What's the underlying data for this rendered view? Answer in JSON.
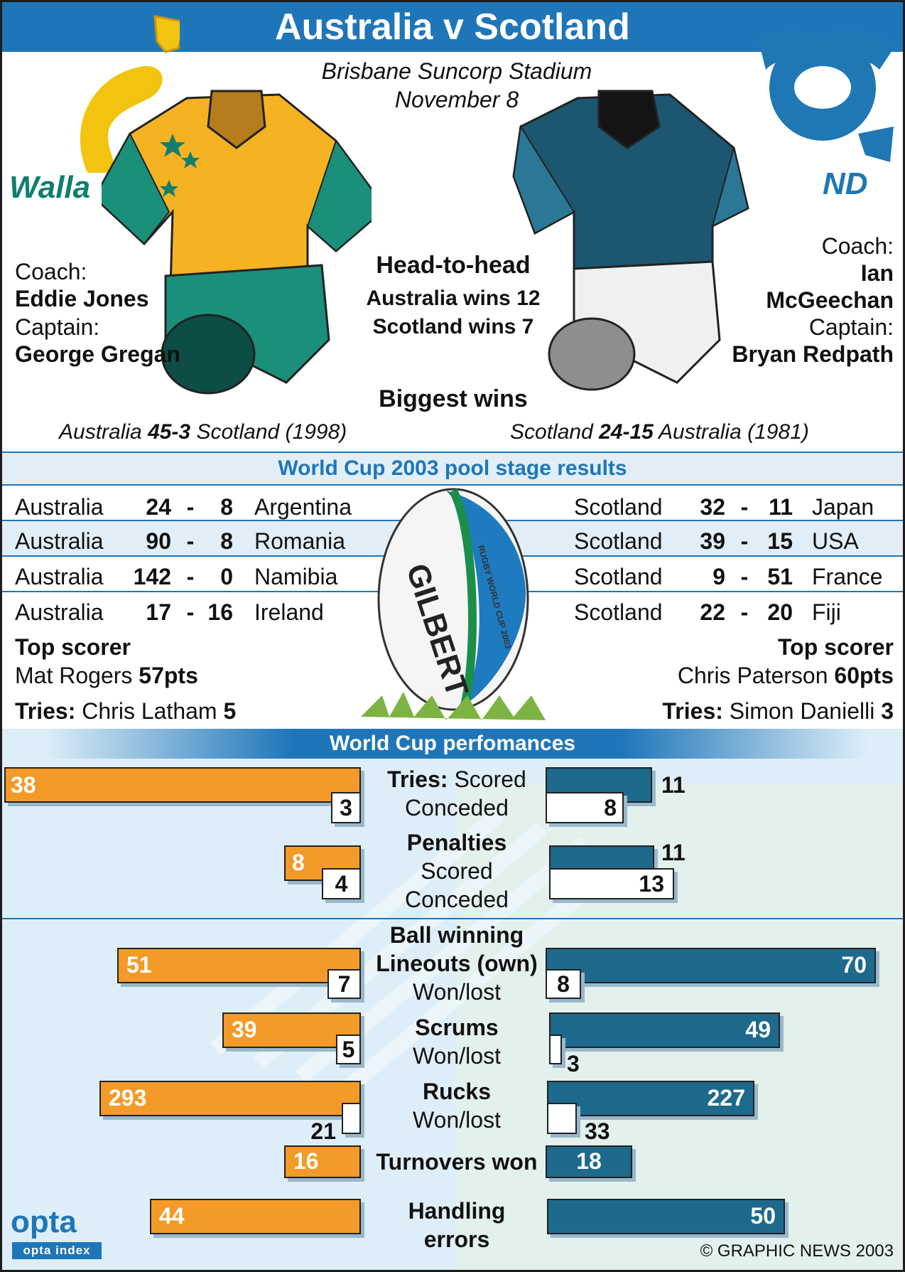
{
  "header": {
    "title": "Australia v Scotland",
    "venue": "Brisbane Suncorp Stadium",
    "date": "November 8",
    "logo_left_text": "Walla",
    "logo_right_text": "ND"
  },
  "colors": {
    "accent": "#1e76b9",
    "australia": "#f39a28",
    "scotland": "#1d6a8d",
    "shade": "#e2eef7"
  },
  "australia": {
    "coach_label": "Coach:",
    "coach": "Eddie Jones",
    "captain_label": "Captain:",
    "captain": "George Gregan"
  },
  "scotland": {
    "coach_label": "Coach:",
    "coach_line1": "Ian",
    "coach_line2": "McGeechan",
    "captain_label": "Captain:",
    "captain": "Bryan Redpath"
  },
  "head_to_head": {
    "title": "Head-to-head",
    "aus": "Australia wins 12",
    "sco": "Scotland wins 7",
    "biggest_title": "Biggest wins",
    "aus_win_pre": "Australia ",
    "aus_win_score": "45-3",
    "aus_win_post": " Scotland (1998)",
    "sco_win_pre": "Scotland ",
    "sco_win_score": "24-15",
    "sco_win_post": " Australia (1981)"
  },
  "pool": {
    "title": "World Cup 2003 pool stage results",
    "aus": [
      {
        "team": "Australia",
        "s1": "24",
        "dash": "-",
        "s2": "8",
        "opp": "Argentina"
      },
      {
        "team": "Australia",
        "s1": "90",
        "dash": "-",
        "s2": "8",
        "opp": "Romania"
      },
      {
        "team": "Australia",
        "s1": "142",
        "dash": "-",
        "s2": "0",
        "opp": "Namibia"
      },
      {
        "team": "Australia",
        "s1": "17",
        "dash": "-",
        "s2": "16",
        "opp": "Ireland"
      }
    ],
    "sco": [
      {
        "team": "Scotland",
        "s1": "32",
        "dash": "-",
        "s2": "11",
        "opp": "Japan"
      },
      {
        "team": "Scotland",
        "s1": "39",
        "dash": "-",
        "s2": "15",
        "opp": "USA"
      },
      {
        "team": "Scotland",
        "s1": "9",
        "dash": "-",
        "s2": "51",
        "opp": "France"
      },
      {
        "team": "Scotland",
        "s1": "22",
        "dash": "-",
        "s2": "20",
        "opp": "Fiji"
      }
    ],
    "aus_top_label": "Top scorer",
    "aus_top_name": "Mat Rogers ",
    "aus_top_pts": "57pts",
    "aus_tries_label": "Tries:",
    "aus_tries_name": " Chris Latham ",
    "aus_tries_num": "5",
    "sco_top_label": "Top scorer",
    "sco_top_name": "Chris Paterson ",
    "sco_top_pts": "60pts",
    "sco_tries_label": "Tries:",
    "sco_tries_name": " Simon Danielli ",
    "sco_tries_num": "3",
    "ball_brand": "GILBERT",
    "ball_event": "RUGBY WORLD CUP 2003"
  },
  "performances": {
    "title": "World Cup perfomances",
    "tries_bold": "Tries:",
    "tries_scored": " Scored",
    "tries_conceded": "Conceded",
    "penalties": "Penalties",
    "pen_scored": "Scored",
    "pen_conceded": "Conceded",
    "ball_winning": "Ball winning",
    "lineouts": "Lineouts (own)",
    "wonlost": "Won/lost",
    "scrums": "Scrums",
    "rucks": "Rucks",
    "turnovers": "Turnovers won",
    "handling1": "Handling",
    "handling2": "errors",
    "values": {
      "tries": {
        "aus_scored": "38",
        "aus_conceded": "3",
        "sco_scored": "11",
        "sco_conceded": "8"
      },
      "penalties": {
        "aus_scored": "8",
        "aus_conceded": "4",
        "sco_scored": "11",
        "sco_conceded": "13"
      },
      "lineouts": {
        "aus_won": "51",
        "aus_lost": "7",
        "sco_won": "70",
        "sco_lost": "8"
      },
      "scrums": {
        "aus_won": "39",
        "aus_lost": "5",
        "sco_won": "49",
        "sco_lost": "3"
      },
      "rucks": {
        "aus_won": "293",
        "aus_lost": "21",
        "sco_won": "227",
        "sco_lost": "33"
      },
      "turnovers": {
        "aus": "16",
        "sco": "18"
      },
      "handling": {
        "aus": "44",
        "sco": "50"
      }
    }
  },
  "footer": {
    "opta": "opta",
    "opta_sub": "opta index",
    "credit": "© GRAPHIC NEWS 2003"
  }
}
